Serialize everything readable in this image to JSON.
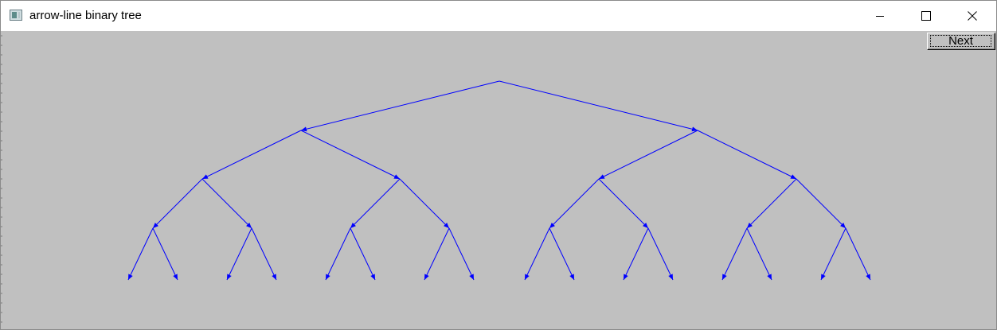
{
  "window": {
    "title": "arrow-line binary tree"
  },
  "toolbar": {
    "next_label": "Next"
  },
  "colors": {
    "canvas_background": "#c0c0c0",
    "edge_color": "#0000ff"
  },
  "icons": {
    "app": "app-window-icon",
    "minimize": "minimize-icon",
    "maximize": "maximize-icon",
    "close": "close-icon"
  },
  "tree": {
    "type": "binary-tree",
    "depth": 4,
    "edge_style": "arrow-line"
  }
}
